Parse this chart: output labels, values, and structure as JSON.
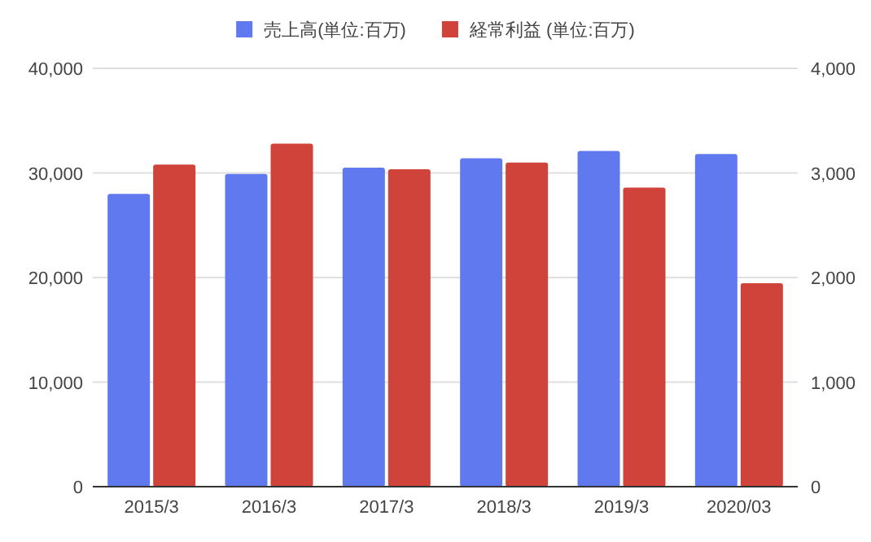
{
  "chart_data": {
    "type": "bar",
    "categories": [
      "2015/3",
      "2016/3",
      "2017/3",
      "2018/3",
      "2019/3",
      "2020/03"
    ],
    "series": [
      {
        "name": "売上高(単位:百万)",
        "color": "#6079ee",
        "values": [
          28000,
          29900,
          30500,
          31400,
          32100,
          31800
        ]
      },
      {
        "name": "経常利益 (単位:百万)",
        "color": "#d0433b",
        "axis": "y2",
        "values": [
          3080,
          3280,
          3035,
          3100,
          2860,
          1945
        ]
      }
    ],
    "ylim": [
      0,
      40000
    ],
    "yticks": [
      {
        "value": 0,
        "label": "0"
      },
      {
        "value": 10000,
        "label": "10,000"
      },
      {
        "value": 20000,
        "label": "20,000"
      },
      {
        "value": 30000,
        "label": "30,000"
      },
      {
        "value": 40000,
        "label": "40,000"
      }
    ],
    "y2lim": [
      0,
      4000
    ],
    "y2ticks": [
      {
        "value": 0,
        "label": "0"
      },
      {
        "value": 1000,
        "label": "1,000"
      },
      {
        "value": 2000,
        "label": "2,000"
      },
      {
        "value": 3000,
        "label": "3,000"
      },
      {
        "value": 4000,
        "label": "4,000"
      }
    ],
    "grid": "y",
    "legend": "top"
  }
}
